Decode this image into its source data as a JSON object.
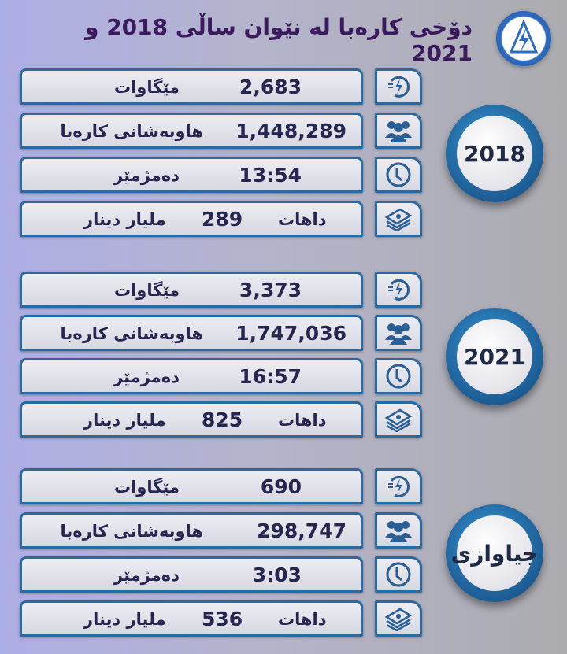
{
  "title": "دۆخی کارەبا لە نێوان ساڵی 2018 و 2021",
  "colors": {
    "title": "#3b1a5e",
    "border": "#2a6aa0",
    "text": "#262650"
  },
  "icons": [
    "power-bolt-icon",
    "users-icon",
    "clock-icon",
    "money-stack-icon"
  ],
  "sections": [
    {
      "badge": "2018",
      "rows": [
        {
          "label": "مێگاوات",
          "value": "2,683"
        },
        {
          "label": "هاوبەشانی کارەبا",
          "value": "1,448,289"
        },
        {
          "label": "دەمژمێر",
          "value": "13:54"
        },
        {
          "label": "داهات",
          "value": "289",
          "unit": "مليار دينار"
        }
      ]
    },
    {
      "badge": "2021",
      "rows": [
        {
          "label": "مێگاوات",
          "value": "3,373"
        },
        {
          "label": "هاوبەشانی کارەبا",
          "value": "1,747,036"
        },
        {
          "label": "دەمژمێر",
          "value": "16:57"
        },
        {
          "label": "داهات",
          "value": "825",
          "unit": "مليار دينار"
        }
      ]
    },
    {
      "badge": "جیاوازی",
      "rows": [
        {
          "label": "مێگاوات",
          "value": "690"
        },
        {
          "label": "هاوبەشانی کارەبا",
          "value": "298,747"
        },
        {
          "label": "دەمژمێر",
          "value": "3:03"
        },
        {
          "label": "داهات",
          "value": "536",
          "unit": "مليار دينار"
        }
      ]
    }
  ]
}
